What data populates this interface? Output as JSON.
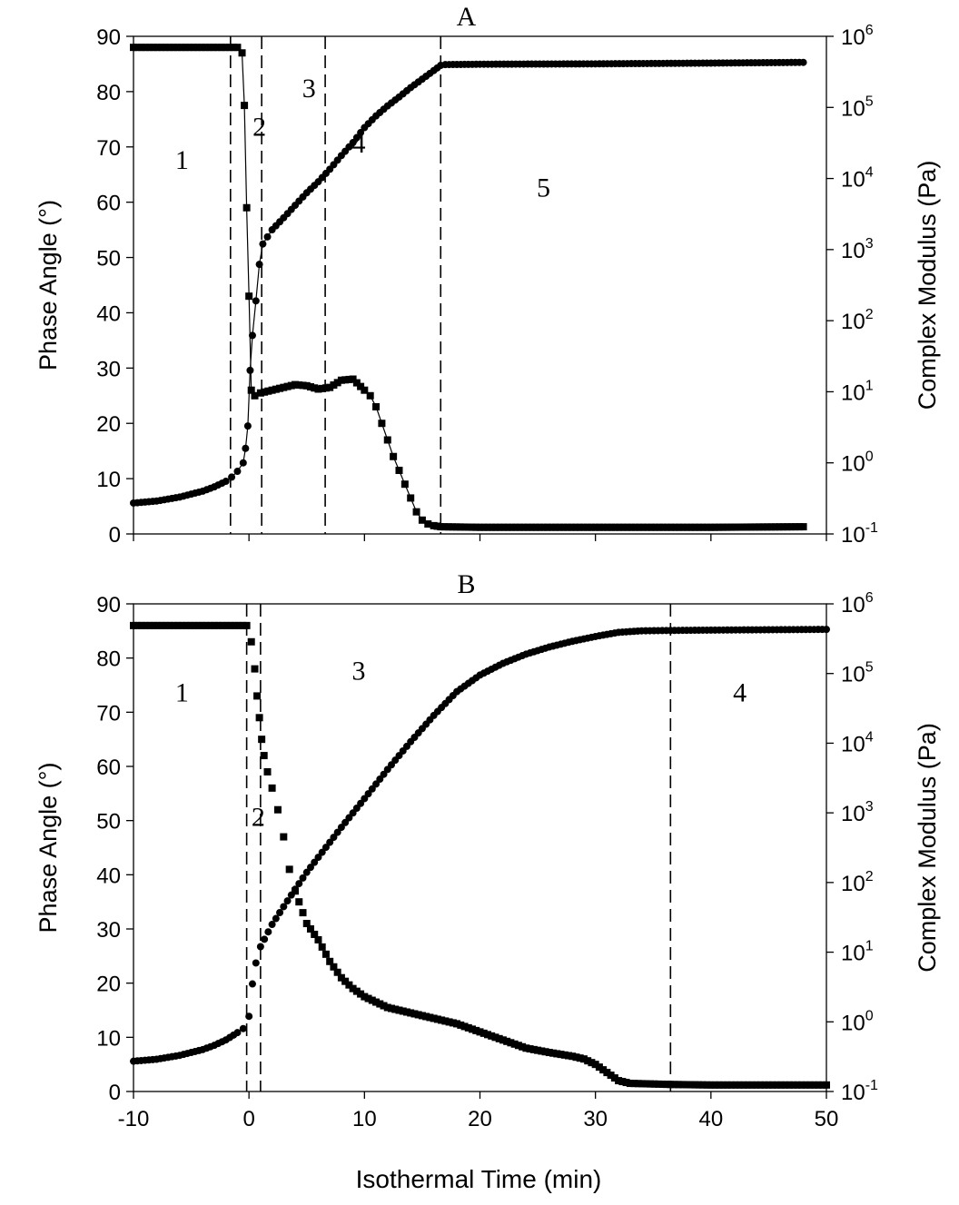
{
  "chart_data": [
    {
      "panel_label": "A",
      "type": "scatter",
      "xlim": [
        -10,
        50
      ],
      "xticks": [
        -10,
        0,
        10,
        20,
        30,
        40,
        50
      ],
      "x_tick_labels_shown": false,
      "ylabel": "Phase Angle (°)",
      "ylim": [
        0,
        90
      ],
      "yticks": [
        0,
        10,
        20,
        30,
        40,
        50,
        60,
        70,
        80,
        90
      ],
      "y2label": "Complex Modulus (Pa)",
      "y2scale": "log",
      "y2lim": [
        0.1,
        1000000
      ],
      "y2ticks": [
        {
          "base": "10",
          "exp": "-1"
        },
        {
          "base": "10",
          "exp": "0"
        },
        {
          "base": "10",
          "exp": "1"
        },
        {
          "base": "10",
          "exp": "2"
        },
        {
          "base": "10",
          "exp": "3"
        },
        {
          "base": "10",
          "exp": "4"
        },
        {
          "base": "10",
          "exp": "5"
        },
        {
          "base": "10",
          "exp": "6"
        }
      ],
      "grid": false,
      "vlines": [
        -1.6,
        1.1,
        6.6,
        16.6
      ],
      "region_labels": [
        {
          "text": "1",
          "x": -5.8,
          "y": 66
        },
        {
          "text": "2",
          "x": 0.9,
          "y": 72
        },
        {
          "text": "3",
          "x": 5.2,
          "y": 79
        },
        {
          "text": "4",
          "x": 9.5,
          "y": 69
        },
        {
          "text": "5",
          "x": 25.5,
          "y": 61
        }
      ],
      "series": [
        {
          "marker": "square",
          "axis": "left",
          "connected": true,
          "points": [
            [
              -10,
              88
            ],
            [
              -1.0,
              88
            ],
            [
              -0.6,
              87
            ],
            [
              -0.4,
              77.5
            ],
            [
              -0.2,
              59
            ],
            [
              0,
              43
            ],
            [
              0.2,
              26
            ],
            [
              0.5,
              25
            ],
            [
              1.0,
              25.5
            ],
            [
              2.0,
              26
            ],
            [
              3.0,
              26.5
            ],
            [
              4.0,
              27
            ],
            [
              5.0,
              26.8
            ],
            [
              6.0,
              26.2
            ],
            [
              7.0,
              26.5
            ],
            [
              8.0,
              27.8
            ],
            [
              9.0,
              28
            ],
            [
              10.0,
              26
            ],
            [
              10.5,
              25
            ],
            [
              11.0,
              23
            ],
            [
              11.5,
              20
            ],
            [
              12.0,
              17
            ],
            [
              12.5,
              14
            ],
            [
              13.0,
              11.5
            ],
            [
              13.5,
              9
            ],
            [
              14.0,
              6.5
            ],
            [
              14.5,
              4
            ],
            [
              15.0,
              2.5
            ],
            [
              15.5,
              1.8
            ],
            [
              16.0,
              1.5
            ],
            [
              16.6,
              1.3
            ],
            [
              20,
              1.2
            ],
            [
              30,
              1.2
            ],
            [
              40,
              1.2
            ],
            [
              48,
              1.3
            ]
          ]
        },
        {
          "marker": "circle",
          "axis": "right",
          "connected": true,
          "points": [
            [
              -10,
              0.272
            ],
            [
              -8,
              0.29
            ],
            [
              -6,
              0.33
            ],
            [
              -4,
              0.4
            ],
            [
              -3,
              0.46
            ],
            [
              -2,
              0.55
            ],
            [
              -1.5,
              0.63
            ],
            [
              -1,
              0.76
            ],
            [
              -0.5,
              1.0
            ],
            [
              -0.3,
              1.6
            ],
            [
              -0.1,
              3.3
            ],
            [
              0.1,
              20
            ],
            [
              0.3,
              62
            ],
            [
              0.6,
              190
            ],
            [
              0.9,
              620
            ],
            [
              1.2,
              1200
            ],
            [
              2,
              1900
            ],
            [
              3,
              2800
            ],
            [
              4,
              4200
            ],
            [
              5,
              6300
            ],
            [
              6,
              9000
            ],
            [
              7,
              13500
            ],
            [
              8,
              21000
            ],
            [
              9,
              32000
            ],
            [
              10,
              52000
            ],
            [
              11,
              76000
            ],
            [
              12,
              105000
            ],
            [
              13,
              140000
            ],
            [
              14,
              190000
            ],
            [
              15,
              250000
            ],
            [
              16,
              330000
            ],
            [
              16.6,
              390000
            ],
            [
              17,
              400000
            ],
            [
              20,
              405000
            ],
            [
              30,
              410000
            ],
            [
              40,
              420000
            ],
            [
              48,
              430000
            ]
          ]
        }
      ]
    },
    {
      "panel_label": "B",
      "type": "scatter",
      "xlabel": "Isothermal Time (min)",
      "xlim": [
        -10,
        50
      ],
      "xticks": [
        -10,
        0,
        10,
        20,
        30,
        40,
        50
      ],
      "x_tick_labels": [
        "-10",
        "0",
        "10",
        "20",
        "30",
        "40",
        "50"
      ],
      "ylabel": "Phase Angle (°)",
      "ylim": [
        0,
        90
      ],
      "yticks": [
        0,
        10,
        20,
        30,
        40,
        50,
        60,
        70,
        80,
        90
      ],
      "y2label": "Complex Modulus (Pa)",
      "y2scale": "log",
      "y2lim": [
        0.1,
        1000000
      ],
      "y2ticks": [
        {
          "base": "10",
          "exp": "-1"
        },
        {
          "base": "10",
          "exp": "0"
        },
        {
          "base": "10",
          "exp": "1"
        },
        {
          "base": "10",
          "exp": "2"
        },
        {
          "base": "10",
          "exp": "3"
        },
        {
          "base": "10",
          "exp": "4"
        },
        {
          "base": "10",
          "exp": "5"
        },
        {
          "base": "10",
          "exp": "6"
        }
      ],
      "grid": false,
      "vlines": [
        -0.2,
        1.0,
        36.5
      ],
      "region_labels": [
        {
          "text": "1",
          "x": -5.8,
          "y": 72
        },
        {
          "text": "2",
          "x": 0.8,
          "y": 49
        },
        {
          "text": "3",
          "x": 9.5,
          "y": 76
        },
        {
          "text": "4",
          "x": 42.5,
          "y": 72
        }
      ],
      "series": [
        {
          "marker": "square",
          "axis": "left",
          "connected": false,
          "points": [
            [
              -10,
              86
            ],
            [
              -0.2,
              86
            ],
            [
              0.2,
              83
            ],
            [
              0.5,
              78
            ],
            [
              0.7,
              73
            ],
            [
              0.9,
              69
            ],
            [
              1.1,
              65
            ],
            [
              1.3,
              62
            ],
            [
              1.6,
              59
            ],
            [
              2.0,
              56
            ],
            [
              2.5,
              52
            ],
            [
              3.0,
              47
            ],
            [
              3.5,
              41
            ],
            [
              4.0,
              37
            ],
            [
              5.0,
              31
            ],
            [
              6.0,
              28
            ],
            [
              7.0,
              24
            ],
            [
              8.0,
              21
            ],
            [
              9.0,
              19
            ],
            [
              10,
              17.5
            ],
            [
              12,
              15.5
            ],
            [
              14,
              14.5
            ],
            [
              16,
              13.5
            ],
            [
              18,
              12.5
            ],
            [
              20,
              11
            ],
            [
              22,
              9.5
            ],
            [
              24,
              8
            ],
            [
              26,
              7.2
            ],
            [
              28,
              6.5
            ],
            [
              29,
              6
            ],
            [
              30,
              5
            ],
            [
              31,
              3.5
            ],
            [
              32,
              2
            ],
            [
              33,
              1.5
            ],
            [
              36.5,
              1.3
            ],
            [
              40,
              1.2
            ],
            [
              45,
              1.2
            ],
            [
              50,
              1.2
            ]
          ]
        },
        {
          "marker": "circle",
          "axis": "right",
          "connected": false,
          "points": [
            [
              -10,
              0.272
            ],
            [
              -8,
              0.29
            ],
            [
              -6,
              0.33
            ],
            [
              -4,
              0.4
            ],
            [
              -3,
              0.46
            ],
            [
              -2,
              0.55
            ],
            [
              -1,
              0.7
            ],
            [
              -0.5,
              0.8
            ],
            [
              0,
              1.2
            ],
            [
              0.3,
              3.5
            ],
            [
              0.6,
              7
            ],
            [
              1,
              12
            ],
            [
              2,
              25
            ],
            [
              3,
              45
            ],
            [
              4,
              80
            ],
            [
              5,
              140
            ],
            [
              6,
              230
            ],
            [
              8,
              620
            ],
            [
              10,
              1600
            ],
            [
              12,
              4200
            ],
            [
              14,
              10500
            ],
            [
              16,
              25000
            ],
            [
              18,
              55000
            ],
            [
              20,
              95000
            ],
            [
              22,
              140000
            ],
            [
              24,
              190000
            ],
            [
              26,
              240000
            ],
            [
              28,
              290000
            ],
            [
              30,
              340000
            ],
            [
              32,
              390000
            ],
            [
              34,
              410000
            ],
            [
              36.5,
              415000
            ],
            [
              40,
              420000
            ],
            [
              45,
              425000
            ],
            [
              50,
              430000
            ]
          ]
        }
      ]
    }
  ]
}
